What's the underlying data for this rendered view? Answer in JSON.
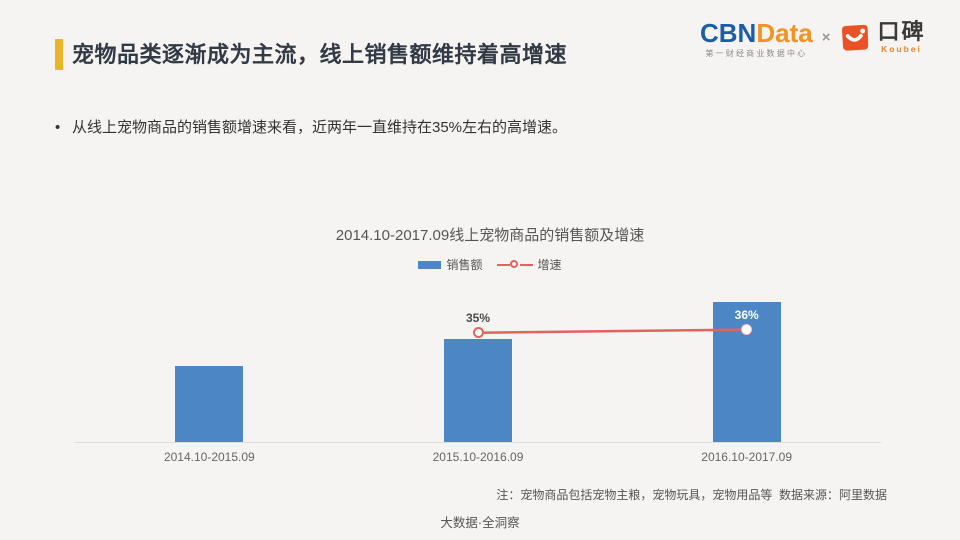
{
  "header": {
    "title": "宠物品类逐渐成为主流，线上销售额维持着高增速",
    "accent_color": "#e9b62b",
    "logos": {
      "cbn_prefix": "CBN",
      "cbn_suffix": "Data",
      "cbn_subtitle": "第一财经商业数据中心",
      "cbn_blue": "#1a5dab",
      "cbn_orange": "#f39422",
      "separator": "×",
      "koubei_name": "口碑",
      "koubei_latin": "Koubei",
      "koubei_orange": "#eb5126"
    }
  },
  "bullet": {
    "marker": "•",
    "text": "从线上宠物商品的销售额增速来看，近两年一直维持在35%左右的高增速。"
  },
  "chart_data": {
    "type": "bar+line",
    "title": "2014.10-2017.09线上宠物商品的销售额及增速",
    "categories": [
      "2014.10-2015.09",
      "2015.10-2016.09",
      "2016.10-2017.09"
    ],
    "series": [
      {
        "name": "销售额",
        "type": "bar",
        "color": "#4d86c4",
        "values": [
          1.0,
          1.35,
          1.84
        ],
        "note": "no value axis shown; heights are relative index (base year = 1.0)"
      },
      {
        "name": "增速",
        "type": "line",
        "color": "#e4625d",
        "values": [
          null,
          35,
          36
        ],
        "labels": [
          null,
          "35%",
          "36%"
        ],
        "unit": "%"
      }
    ],
    "grid": false,
    "y_axis_shown": false,
    "legend_position": "top-center"
  },
  "footer": {
    "note": "注：宠物商品包括宠物主粮，宠物玩具，宠物用品等  数据来源：阿里数据",
    "watermark": "大数据·全洞察"
  }
}
